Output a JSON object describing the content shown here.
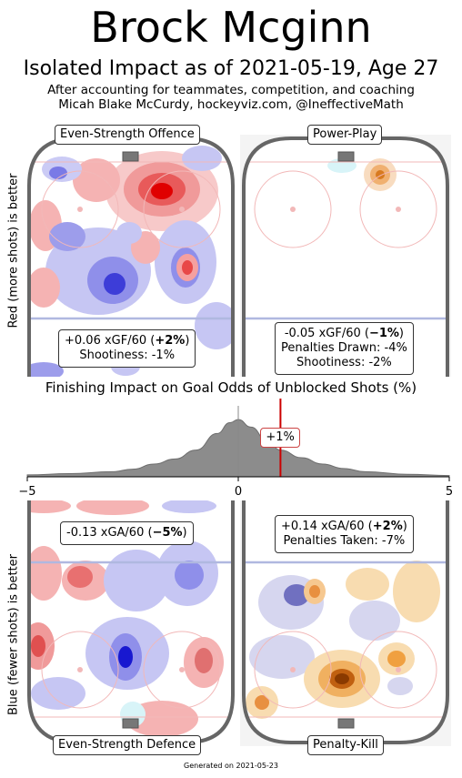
{
  "header": {
    "title": "Brock Mcginn",
    "subtitle": "Isolated Impact as of 2021-05-19, Age 27",
    "line3": "After accounting for teammates, competition, and coaching",
    "line4": "Micah Blake McCurdy, hockeyviz.com, @IneffectiveMath"
  },
  "axis_labels": {
    "top": "Red (more shots) is better",
    "bottom": "Blue (fewer shots) is better"
  },
  "panels": {
    "ev_offence": {
      "label": "Even-Strength Offence",
      "stat_pre": "+0.06 xGF/60 (",
      "stat_bold": "+2%",
      "stat_post": ")",
      "line2": "Shootiness: -1%"
    },
    "power_play": {
      "label": "Power-Play",
      "stat_pre": "-0.05 xGF/60 (",
      "stat_bold": "−1%",
      "stat_post": ")",
      "line2": "Penalties Drawn: -4%",
      "line3": "Shootiness: -2%"
    },
    "ev_defence": {
      "label": "Even-Strength Defence",
      "stat_pre": "-0.13 xGA/60 (",
      "stat_bold": "−5%",
      "stat_post": ")"
    },
    "penalty_kill": {
      "label": "Penalty-Kill",
      "stat_pre": "+0.14 xGA/60 (",
      "stat_bold": "+2%",
      "stat_post": ")",
      "line2": "Penalties Taken: -7%"
    }
  },
  "finishing": {
    "title": "Finishing Impact on Goal Odds of Unblocked Shots (%)",
    "marker_label": "+1%"
  },
  "footer": "Generated on 2021-05-23",
  "chart_data": {
    "type": "area",
    "title": "Finishing Impact on Goal Odds of Unblocked Shots (%)",
    "x_range": [
      -5,
      5
    ],
    "tick_labels": [
      "−5",
      "0",
      "5"
    ],
    "marker_value": 1,
    "marker_label": "+1%",
    "distribution": {
      "x": [
        -5,
        -4,
        -3,
        -2.5,
        -2,
        -1.5,
        -1,
        -0.5,
        -0.2,
        0,
        0.3,
        0.7,
        1,
        1.5,
        2,
        2.5,
        3,
        4,
        5
      ],
      "density": [
        0.03,
        0.05,
        0.08,
        0.12,
        0.2,
        0.28,
        0.42,
        0.68,
        0.85,
        0.9,
        0.78,
        0.55,
        0.42,
        0.3,
        0.2,
        0.13,
        0.08,
        0.04,
        0.02
      ]
    },
    "colors": {
      "fill": "#8c8c8c",
      "marker": "#cc0000",
      "zero_line": "#888888"
    }
  },
  "colors": {
    "red": "#e8413a",
    "blue": "#4a4ad8",
    "orange": "#f0a040",
    "rink": "#666666",
    "boards_fill": "#f4f4f4"
  }
}
